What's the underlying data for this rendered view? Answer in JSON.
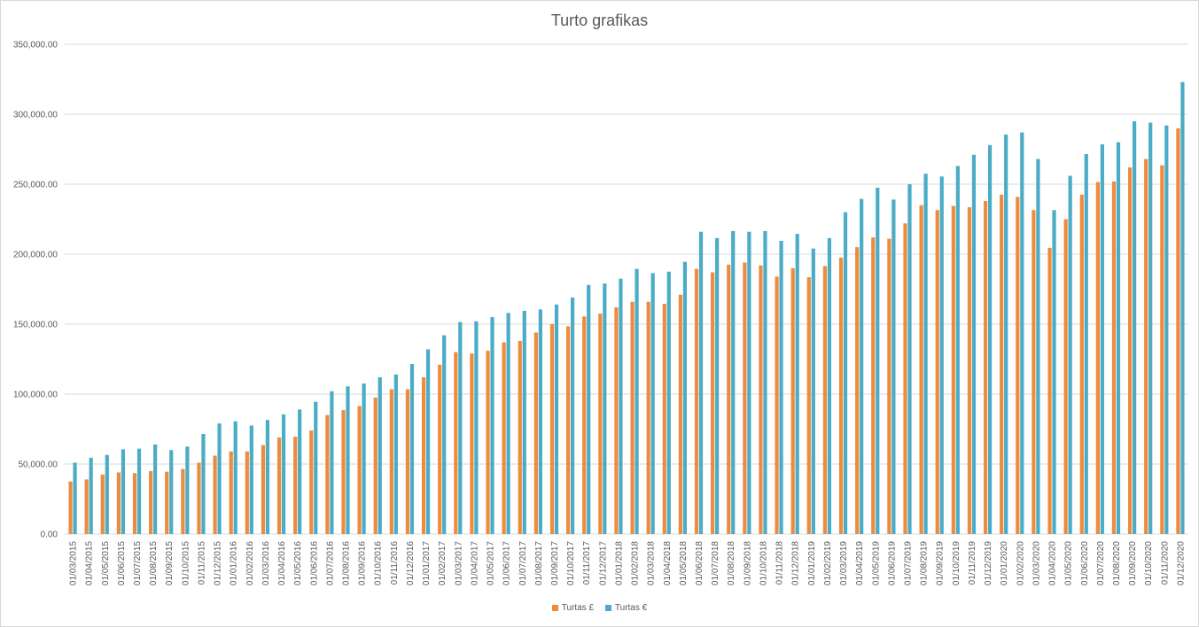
{
  "chart_data": {
    "type": "bar",
    "title": "Turto grafikas",
    "xlabel": "",
    "ylabel": "",
    "ylim": [
      0,
      350000
    ],
    "yticks": [
      "0.00",
      "50,000.00",
      "100,000.00",
      "150,000.00",
      "200,000.00",
      "250,000.00",
      "300,000.00",
      "350,000.00"
    ],
    "grid": true,
    "legend_position": "bottom",
    "categories": [
      "01/03/2015",
      "01/04/2015",
      "01/05/2015",
      "01/06/2015",
      "01/07/2015",
      "01/08/2015",
      "01/09/2015",
      "01/10/2015",
      "01/11/2015",
      "01/12/2015",
      "01/01/2016",
      "01/02/2016",
      "01/03/2016",
      "01/04/2016",
      "01/05/2016",
      "01/06/2016",
      "01/07/2016",
      "01/08/2016",
      "01/09/2016",
      "01/10/2016",
      "01/11/2016",
      "01/12/2016",
      "01/01/2017",
      "01/02/2017",
      "01/03/2017",
      "01/04/2017",
      "01/05/2017",
      "01/06/2017",
      "01/07/2017",
      "01/08/2017",
      "01/09/2017",
      "01/10/2017",
      "01/11/2017",
      "01/12/2017",
      "01/01/2018",
      "01/02/2018",
      "01/03/2018",
      "01/04/2018",
      "01/05/2018",
      "01/06/2018",
      "01/07/2018",
      "01/08/2018",
      "01/09/2018",
      "01/10/2018",
      "01/11/2018",
      "01/12/2018",
      "01/01/2019",
      "01/02/2019",
      "01/03/2019",
      "01/04/2019",
      "01/05/2019",
      "01/06/2019",
      "01/07/2019",
      "01/08/2019",
      "01/09/2019",
      "01/10/2019",
      "01/11/2019",
      "01/12/2019",
      "01/01/2020",
      "01/02/2020",
      "01/03/2020",
      "01/04/2020",
      "01/05/2020",
      "01/06/2020",
      "01/07/2020",
      "01/08/2020",
      "01/09/2020",
      "01/10/2020",
      "01/11/2020",
      "01/12/2020"
    ],
    "series": [
      {
        "name": "Turtas £",
        "color": "#ed8b3f",
        "values": [
          37500,
          39000,
          42500,
          44000,
          43500,
          45000,
          44500,
          46500,
          51000,
          56000,
          59000,
          59000,
          63500,
          69000,
          69500,
          74000,
          85000,
          88500,
          91500,
          97500,
          103500,
          103500,
          112000,
          121000,
          130000,
          129000,
          131000,
          137000,
          138000,
          144000,
          150000,
          148500,
          155500,
          157500,
          162000,
          166000,
          166000,
          164500,
          171000,
          189500,
          187000,
          192500,
          194000,
          192000,
          184000,
          190000,
          183500,
          191500,
          197500,
          205000,
          212000,
          211000,
          222000,
          235000,
          231500,
          234500,
          233500,
          238000,
          242500,
          241000,
          231500,
          204500,
          225000,
          242500,
          251500,
          252000,
          262000,
          268000,
          263500,
          290000
        ]
      },
      {
        "name": "Turtas €",
        "color": "#4bacc6",
        "values": [
          51000,
          54500,
          56500,
          60500,
          61000,
          64000,
          60000,
          62500,
          71500,
          79000,
          80500,
          77500,
          81500,
          85500,
          89000,
          94500,
          102000,
          105500,
          107500,
          112000,
          114000,
          121500,
          132000,
          142000,
          151500,
          152000,
          155000,
          158000,
          159500,
          160500,
          164000,
          169000,
          178000,
          179000,
          182500,
          189500,
          186500,
          187500,
          194500,
          216000,
          211500,
          216500,
          216000,
          216500,
          209500,
          214500,
          204000,
          211500,
          230000,
          239500,
          247500,
          239000,
          250000,
          257500,
          255500,
          263000,
          271000,
          278000,
          285500,
          287000,
          268000,
          231500,
          256000,
          271500,
          278500,
          280000,
          295000,
          294000,
          292000,
          323000
        ]
      }
    ]
  }
}
